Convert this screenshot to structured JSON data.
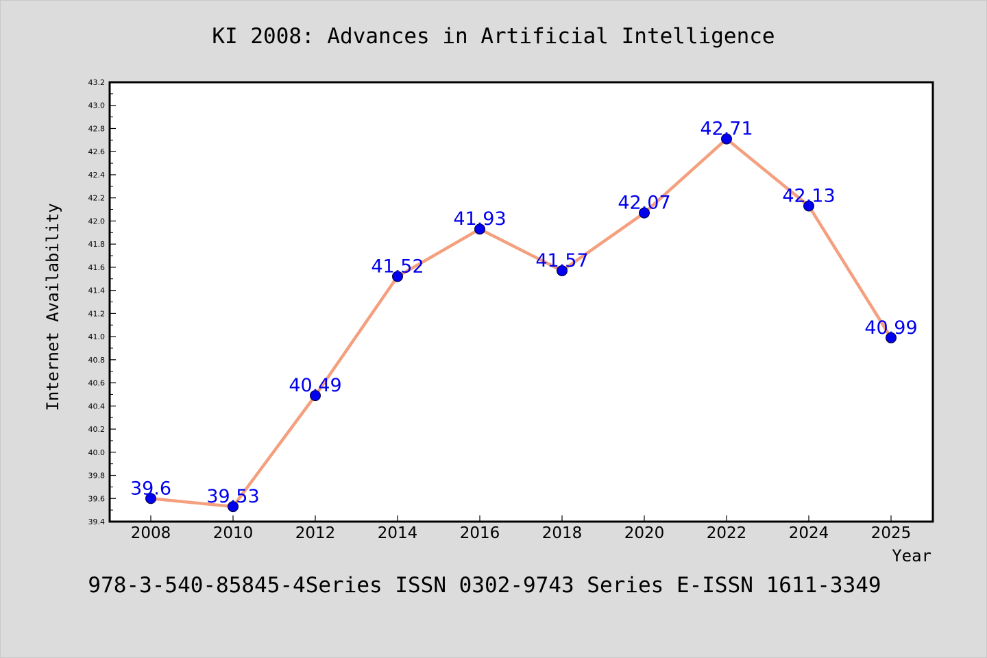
{
  "chart_data": {
    "type": "line",
    "title": "KI 2008: Advances in Artificial Intelligence",
    "footer": "978-3-540-85845-4Series ISSN 0302-9743 Series E-ISSN 1611-3349",
    "xlabel": "Year",
    "ylabel": "Internet Availability",
    "categories": [
      "2008",
      "2010",
      "2012",
      "2014",
      "2016",
      "2018",
      "2020",
      "2022",
      "2024",
      "2025"
    ],
    "values": [
      39.6,
      39.53,
      40.49,
      41.52,
      41.93,
      41.57,
      42.07,
      42.71,
      42.13,
      40.99
    ],
    "data_labels": [
      "39.6",
      "39.53",
      "40.49",
      "41.52",
      "41.93",
      "41.57",
      "42.07",
      "42.71",
      "42.13",
      "40.99"
    ],
    "ylim": [
      39.4,
      43.2
    ],
    "yticks": [
      "39.4",
      "39.6",
      "39.8",
      "40.0",
      "40.2",
      "40.4",
      "40.6",
      "40.8",
      "41.0",
      "41.2",
      "41.4",
      "41.6",
      "41.8",
      "42.0",
      "42.2",
      "42.4",
      "42.6",
      "42.8",
      "43.0",
      "43.2"
    ],
    "grid": false,
    "line_color": "#f4a07e",
    "marker_color": "#0000ee",
    "label_color": "#0000ee",
    "background": "#dcdcdc",
    "plot_background": "#ffffff"
  }
}
